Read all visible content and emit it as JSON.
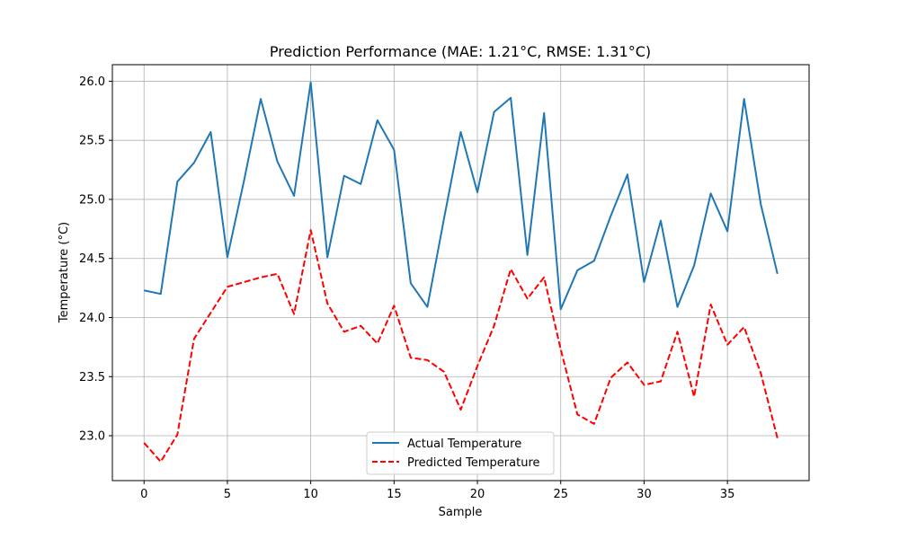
{
  "chart_data": {
    "type": "line",
    "title": "Prediction Performance (MAE: 1.21°C, RMSE: 1.31°C)",
    "xlabel": "Sample",
    "ylabel": "Temperature (°C)",
    "xlim": [
      -1.9,
      39.9
    ],
    "ylim": [
      22.62,
      26.14
    ],
    "xticks": [
      0,
      5,
      10,
      15,
      20,
      25,
      30,
      35
    ],
    "yticks": [
      23.0,
      23.5,
      24.0,
      24.5,
      25.0,
      25.5,
      26.0
    ],
    "ytick_labels": [
      "23.0",
      "23.5",
      "24.0",
      "24.5",
      "25.0",
      "25.5",
      "26.0"
    ],
    "grid": true,
    "legend_position": "lower-center",
    "x": [
      0,
      1,
      2,
      3,
      4,
      5,
      6,
      7,
      8,
      9,
      10,
      11,
      12,
      13,
      14,
      15,
      16,
      17,
      18,
      19,
      20,
      21,
      22,
      23,
      24,
      25,
      26,
      27,
      28,
      29,
      30,
      31,
      32,
      33,
      34,
      35,
      36,
      37,
      38
    ],
    "series": [
      {
        "name": "Actual Temperature",
        "color": "#1f77b4",
        "style": "solid",
        "values": [
          24.23,
          24.2,
          25.15,
          25.31,
          25.57,
          24.51,
          25.16,
          25.85,
          25.32,
          25.03,
          25.99,
          24.51,
          25.2,
          25.13,
          25.67,
          25.42,
          24.29,
          24.09,
          24.84,
          25.57,
          25.06,
          25.74,
          25.86,
          24.53,
          25.73,
          24.07,
          24.4,
          24.48,
          24.86,
          25.21,
          24.3,
          24.82,
          24.09,
          24.44,
          25.05,
          24.73,
          25.85,
          24.96,
          24.37
        ]
      },
      {
        "name": "Predicted Temperature",
        "color": "#ff0000",
        "style": "dashed",
        "values": [
          22.94,
          22.78,
          23.01,
          23.82,
          24.04,
          24.26,
          24.3,
          24.34,
          24.37,
          24.03,
          24.74,
          24.12,
          23.88,
          23.93,
          23.78,
          24.1,
          23.66,
          23.64,
          23.54,
          23.22,
          23.59,
          23.93,
          24.41,
          24.16,
          24.34,
          23.73,
          23.18,
          23.1,
          23.49,
          23.62,
          23.43,
          23.46,
          23.88,
          23.33,
          24.11,
          23.77,
          23.92,
          23.53,
          22.98
        ]
      }
    ]
  }
}
